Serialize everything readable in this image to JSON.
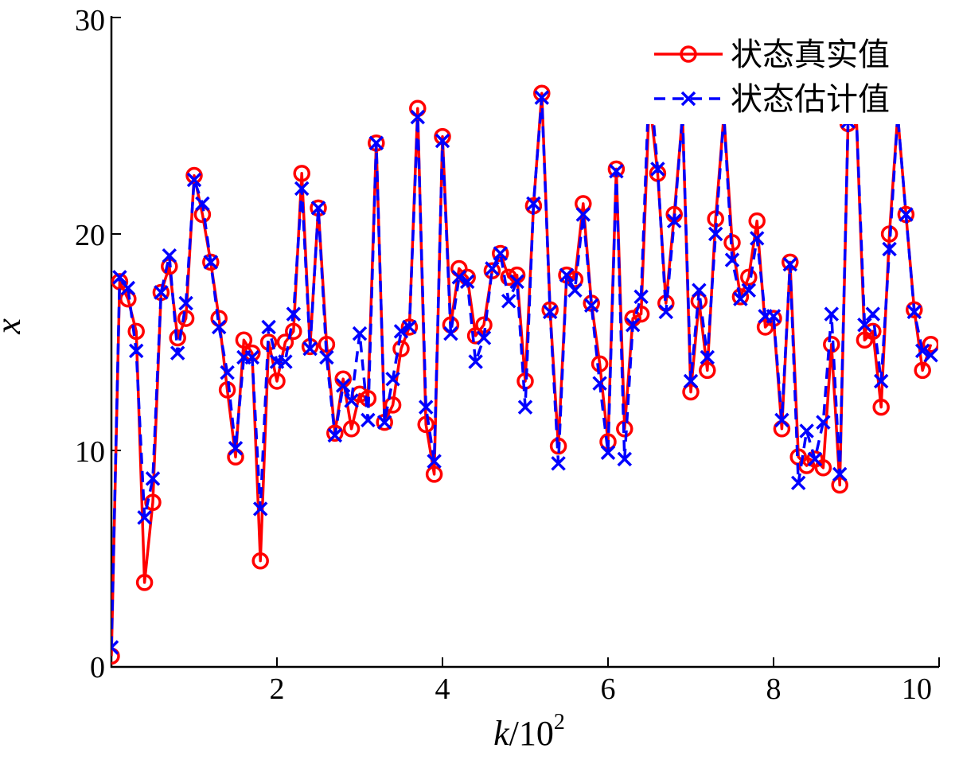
{
  "chart_data": {
    "type": "line",
    "title": "",
    "xlabel": "k",
    "xlabel_suffix": "/10",
    "xlabel_exponent": "2",
    "ylabel": "x",
    "xlim": [
      0,
      10
    ],
    "ylim": [
      0,
      30
    ],
    "xticks": [
      2,
      4,
      6,
      8,
      10
    ],
    "yticks": [
      0,
      10,
      20,
      30
    ],
    "xtick_labels": [
      "2",
      "4",
      "6",
      "8",
      "10"
    ],
    "ytick_labels": [
      "0",
      "10",
      "20",
      "30"
    ],
    "grid": false,
    "legend_position": "top-right",
    "x": [
      0.0,
      0.1,
      0.2,
      0.3,
      0.4,
      0.5,
      0.6,
      0.7,
      0.8,
      0.9,
      1.0,
      1.1,
      1.2,
      1.3,
      1.4,
      1.5,
      1.6,
      1.7,
      1.8,
      1.9,
      2.0,
      2.1,
      2.2,
      2.3,
      2.4,
      2.5,
      2.6,
      2.7,
      2.8,
      2.9,
      3.0,
      3.1,
      3.2,
      3.3,
      3.4,
      3.5,
      3.6,
      3.7,
      3.8,
      3.9,
      4.0,
      4.1,
      4.2,
      4.3,
      4.4,
      4.5,
      4.6,
      4.7,
      4.8,
      4.9,
      5.0,
      5.1,
      5.2,
      5.3,
      5.4,
      5.5,
      5.6,
      5.7,
      5.8,
      5.9,
      6.0,
      6.1,
      6.2,
      6.3,
      6.4,
      6.5,
      6.6,
      6.7,
      6.8,
      6.9,
      7.0,
      7.1,
      7.2,
      7.3,
      7.4,
      7.5,
      7.6,
      7.7,
      7.8,
      7.9,
      8.0,
      8.1,
      8.2,
      8.3,
      8.4,
      8.5,
      8.6,
      8.7,
      8.8,
      8.9,
      9.0,
      9.1,
      9.2,
      9.3,
      9.4,
      9.5,
      9.6,
      9.7,
      9.8,
      9.9
    ],
    "series": [
      {
        "name": "状态真实值",
        "color": "#ff0000",
        "line_style": "solid",
        "marker": "circle",
        "values": [
          0.5,
          17.8,
          17.0,
          15.5,
          3.9,
          7.6,
          17.3,
          18.5,
          15.2,
          16.1,
          22.7,
          20.9,
          18.7,
          16.1,
          12.8,
          9.7,
          15.1,
          14.5,
          4.9,
          15.0,
          13.2,
          15.0,
          15.5,
          22.8,
          14.8,
          21.2,
          14.9,
          10.8,
          13.3,
          11.0,
          12.6,
          12.4,
          24.2,
          11.3,
          12.1,
          14.7,
          15.7,
          25.8,
          11.2,
          8.9,
          24.5,
          15.8,
          18.4,
          18.0,
          15.3,
          15.8,
          18.3,
          19.1,
          18.0,
          18.1,
          13.2,
          21.3,
          26.5,
          16.5,
          10.2,
          18.1,
          17.9,
          21.4,
          16.8,
          14.0,
          10.4,
          23.0,
          11.0,
          16.1,
          16.3,
          26.3,
          22.8,
          16.8,
          20.9,
          25.5,
          12.7,
          16.9,
          13.7,
          20.7,
          25.5,
          19.6,
          17.1,
          18.0,
          20.6,
          15.7,
          16.1,
          11.0,
          18.7,
          9.7,
          9.3,
          9.6,
          9.2,
          14.9,
          8.4,
          25.1,
          25.5,
          15.1,
          15.5,
          12.0,
          20.0,
          25.5,
          20.9,
          16.5,
          13.7,
          14.9
        ]
      },
      {
        "name": "状态估计值",
        "color": "#0000ff",
        "line_style": "dashed",
        "marker": "x",
        "values": [
          0.9,
          18.0,
          17.5,
          14.6,
          6.9,
          8.7,
          17.3,
          19.0,
          14.5,
          16.8,
          22.5,
          21.4,
          18.7,
          15.7,
          13.6,
          10.1,
          14.3,
          14.3,
          7.3,
          15.7,
          14.1,
          14.1,
          16.3,
          22.1,
          14.7,
          21.2,
          14.3,
          10.7,
          13.0,
          12.3,
          15.4,
          11.4,
          24.2,
          11.3,
          13.3,
          15.5,
          15.7,
          25.4,
          12.0,
          9.5,
          24.3,
          15.4,
          18.0,
          17.8,
          14.1,
          15.2,
          18.4,
          19.1,
          16.9,
          17.8,
          12.0,
          21.4,
          26.3,
          16.4,
          9.4,
          18.1,
          17.4,
          20.9,
          16.7,
          13.1,
          9.9,
          22.9,
          9.6,
          15.8,
          17.1,
          27.4,
          23.0,
          16.4,
          20.6,
          25.5,
          13.2,
          17.4,
          14.3,
          20.0,
          25.5,
          18.8,
          17.0,
          17.4,
          19.8,
          16.2,
          16.2,
          11.4,
          18.6,
          8.5,
          10.9,
          9.6,
          11.3,
          16.3,
          8.9,
          25.2,
          25.5,
          15.8,
          16.3,
          13.2,
          19.3,
          25.5,
          20.9,
          16.4,
          14.6,
          14.4
        ]
      }
    ]
  }
}
